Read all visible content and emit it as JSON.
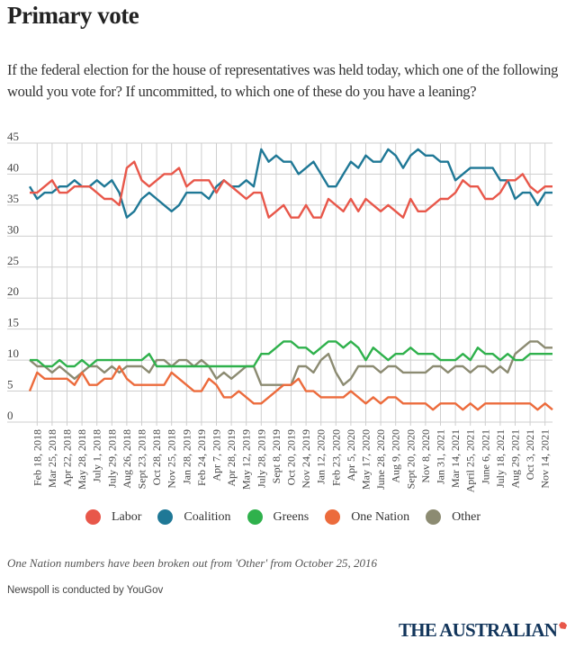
{
  "header": {
    "title": "Primary vote",
    "subtitle": "If the federal election for the house of representatives was held today, which one of the following would you vote for? If uncommitted, to which one of these do you have a leaning?"
  },
  "legend": [
    {
      "name": "Labor",
      "color": "#e8574a"
    },
    {
      "name": "Coalition",
      "color": "#1f7896"
    },
    {
      "name": "Greens",
      "color": "#2fb14c"
    },
    {
      "name": "One Nation",
      "color": "#ec6b3c"
    },
    {
      "name": "Other",
      "color": "#8c8b72"
    }
  ],
  "footer": {
    "note": "One Nation numbers have been broken out from 'Other' from October 25, 2016",
    "source": "Newspoll is conducted by YouGov",
    "logo": "THE AUSTRALIAN",
    "logo_icon": "australia-map-icon"
  },
  "chart_data": {
    "type": "line",
    "title": "Primary vote",
    "xlabel": "",
    "ylabel": "",
    "ylim": [
      0,
      45
    ],
    "yticks": [
      0,
      5,
      10,
      15,
      20,
      25,
      30,
      35,
      40,
      45
    ],
    "grid": true,
    "legend_position": "bottom",
    "tick_labels": [
      "Feb 18, 2018",
      "Mar 25, 2018",
      "Apr 22, 2018",
      "May 28, 2018",
      "July 1, 2018",
      "July 29, 2018",
      "Aug 26, 2018",
      "Sept 23, 2018",
      "Oct 28, 2018",
      "Nov 25, 2018",
      "Jan 28, 2019",
      "Feb 24, 2019",
      "Apr 7, 2019",
      "Apr 28, 2019",
      "May 12, 2019",
      "July 28, 2019",
      "Sept 8, 2019",
      "Oct 20, 2019",
      "Nov 24, 2019",
      "Jan 12, 2020",
      "Feb 23, 2020",
      "Apr 5, 2020",
      "May 17, 2020",
      "June 28, 2020",
      "Aug 9, 2020",
      "Sept 20, 2020",
      "Nov 8, 2020",
      "Jan 31, 2021",
      "Mar 14, 2021",
      "April 25, 2021",
      "June 6, 2021",
      "July 18, 2021",
      "Aug 29, 2021",
      "Oct 3, 2021",
      "Nov 14, 2021"
    ],
    "series": [
      {
        "name": "Labor",
        "color": "#e8574a",
        "values": [
          37,
          37,
          38,
          39,
          37,
          37,
          38,
          38,
          38,
          37,
          36,
          36,
          35,
          41,
          42,
          39,
          38,
          39,
          40,
          40,
          41,
          38,
          39,
          39,
          39,
          37,
          39,
          38,
          37,
          36,
          37,
          37,
          33,
          34,
          35,
          33,
          33,
          35,
          33,
          33,
          36,
          35,
          34,
          36,
          34,
          36,
          35,
          34,
          35,
          34,
          33,
          36,
          34,
          34,
          35,
          36,
          36,
          37,
          39,
          38,
          38,
          36,
          36,
          37,
          39,
          39,
          40,
          38,
          37,
          38,
          38
        ]
      },
      {
        "name": "Coalition",
        "color": "#1f7896",
        "values": [
          38,
          36,
          37,
          37,
          38,
          38,
          39,
          38,
          38,
          39,
          38,
          39,
          37,
          33,
          34,
          36,
          37,
          36,
          35,
          34,
          35,
          37,
          37,
          37,
          36,
          38,
          39,
          38,
          38,
          39,
          38,
          44,
          42,
          43,
          42,
          42,
          40,
          41,
          42,
          40,
          38,
          38,
          40,
          42,
          41,
          43,
          42,
          42,
          44,
          43,
          41,
          43,
          44,
          43,
          43,
          42,
          42,
          39,
          40,
          41,
          41,
          41,
          41,
          39,
          39,
          36,
          37,
          37,
          35,
          37,
          37
        ]
      },
      {
        "name": "Greens",
        "color": "#2fb14c",
        "values": [
          10,
          10,
          9,
          9,
          10,
          9,
          9,
          10,
          9,
          10,
          10,
          10,
          10,
          10,
          10,
          10,
          11,
          9,
          9,
          9,
          9,
          9,
          9,
          9,
          9,
          9,
          9,
          9,
          9,
          9,
          9,
          11,
          11,
          12,
          13,
          13,
          12,
          12,
          11,
          12,
          13,
          13,
          12,
          13,
          12,
          10,
          12,
          11,
          10,
          11,
          11,
          12,
          11,
          11,
          11,
          10,
          10,
          10,
          11,
          10,
          12,
          11,
          11,
          10,
          11,
          10,
          10,
          11,
          11,
          11,
          11
        ]
      },
      {
        "name": "One Nation",
        "color": "#ec6b3c",
        "values": [
          5,
          8,
          7,
          7,
          7,
          7,
          6,
          8,
          6,
          6,
          7,
          7,
          9,
          7,
          6,
          6,
          6,
          6,
          6,
          8,
          7,
          6,
          5,
          5,
          7,
          6,
          4,
          4,
          5,
          4,
          3,
          3,
          4,
          5,
          6,
          6,
          7,
          5,
          5,
          4,
          4,
          4,
          4,
          5,
          4,
          3,
          4,
          3,
          4,
          4,
          3,
          3,
          3,
          3,
          2,
          3,
          3,
          3,
          2,
          3,
          2,
          3,
          3,
          3,
          3,
          3,
          3,
          3,
          2,
          3,
          2
        ]
      },
      {
        "name": "Other",
        "color": "#8c8b72",
        "values": [
          10,
          9,
          9,
          8,
          9,
          8,
          7,
          8,
          9,
          9,
          8,
          9,
          8,
          9,
          9,
          9,
          8,
          10,
          10,
          9,
          10,
          10,
          9,
          10,
          9,
          7,
          8,
          7,
          8,
          9,
          9,
          6,
          6,
          6,
          6,
          6,
          9,
          9,
          8,
          10,
          11,
          8,
          6,
          7,
          9,
          9,
          9,
          8,
          9,
          9,
          8,
          8,
          8,
          8,
          9,
          9,
          8,
          9,
          9,
          8,
          9,
          9,
          8,
          9,
          8,
          11,
          12,
          13,
          13,
          12,
          12
        ]
      }
    ]
  }
}
